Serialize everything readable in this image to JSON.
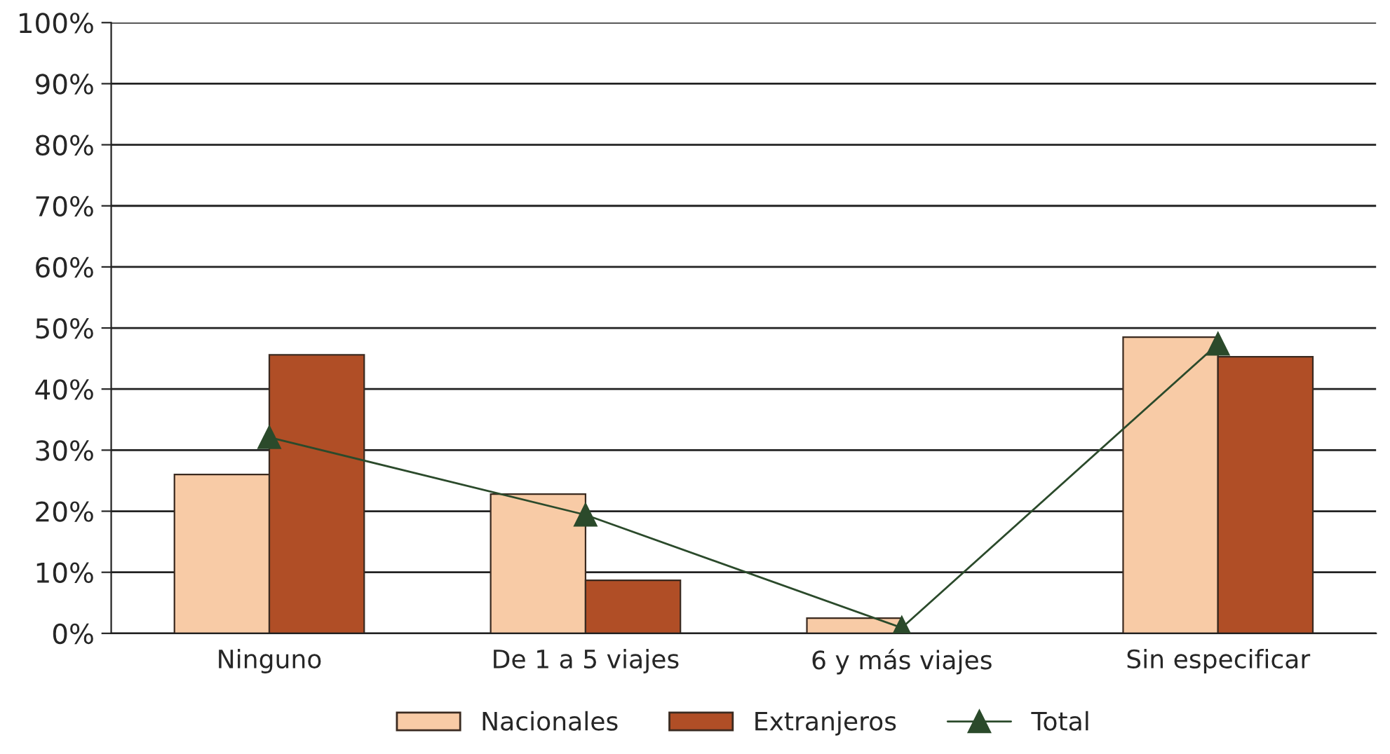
{
  "chart_data": {
    "type": "bar",
    "categories": [
      "Ninguno",
      "De 1 a 5 viajes",
      "6 y más viajes",
      "Sin especificar"
    ],
    "series": [
      {
        "name": "Nacionales",
        "color": "#f8cba6",
        "values": [
          26.0,
          22.8,
          2.5,
          48.5
        ]
      },
      {
        "name": "Extranjeros",
        "color": "#b04e26",
        "values": [
          45.6,
          8.7,
          null,
          45.3
        ]
      },
      {
        "name": "Total",
        "type": "line",
        "color": "#2b4a2b",
        "marker": "triangle",
        "values": [
          32.1,
          19.4,
          0.9,
          47.4
        ]
      }
    ],
    "ylim": [
      0,
      100
    ],
    "yticks": [
      {
        "value": 0,
        "label": "0%"
      },
      {
        "value": 10,
        "label": "10%"
      },
      {
        "value": 20,
        "label": "20%"
      },
      {
        "value": 30,
        "label": "30%"
      },
      {
        "value": 40,
        "label": "40%"
      },
      {
        "value": 50,
        "label": "50%"
      },
      {
        "value": 60,
        "label": "60%"
      },
      {
        "value": 70,
        "label": "70%"
      },
      {
        "value": 80,
        "label": "80%"
      },
      {
        "value": 90,
        "label": "90%"
      },
      {
        "value": 100,
        "label": "100%"
      }
    ],
    "grid": "y",
    "legend": "bottom"
  }
}
